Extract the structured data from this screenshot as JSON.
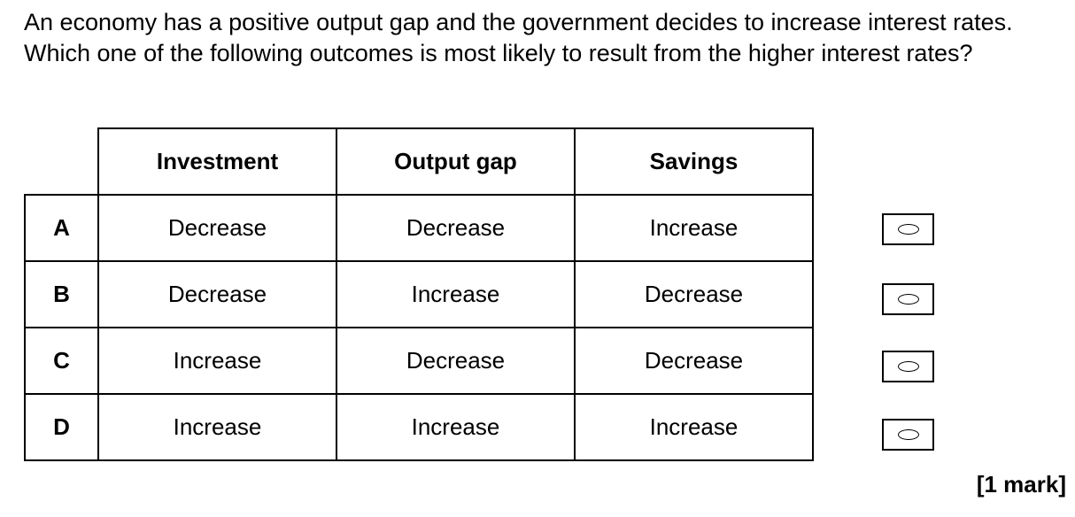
{
  "question": {
    "text": "An economy has a positive output gap and the government decides to increase interest rates.  Which one of the following outcomes is most likely to result from the higher interest rates?"
  },
  "table": {
    "headers": [
      "Investment",
      "Output gap",
      "Savings"
    ],
    "rows": [
      {
        "letter": "A",
        "cells": [
          "Decrease",
          "Decrease",
          "Increase"
        ]
      },
      {
        "letter": "B",
        "cells": [
          "Decrease",
          "Increase",
          "Decrease"
        ]
      },
      {
        "letter": "C",
        "cells": [
          "Increase",
          "Decrease",
          "Decrease"
        ]
      },
      {
        "letter": "D",
        "cells": [
          "Increase",
          "Increase",
          "Increase"
        ]
      }
    ]
  },
  "choices": [
    "A",
    "B",
    "C",
    "D"
  ],
  "marks": "[1 mark]"
}
